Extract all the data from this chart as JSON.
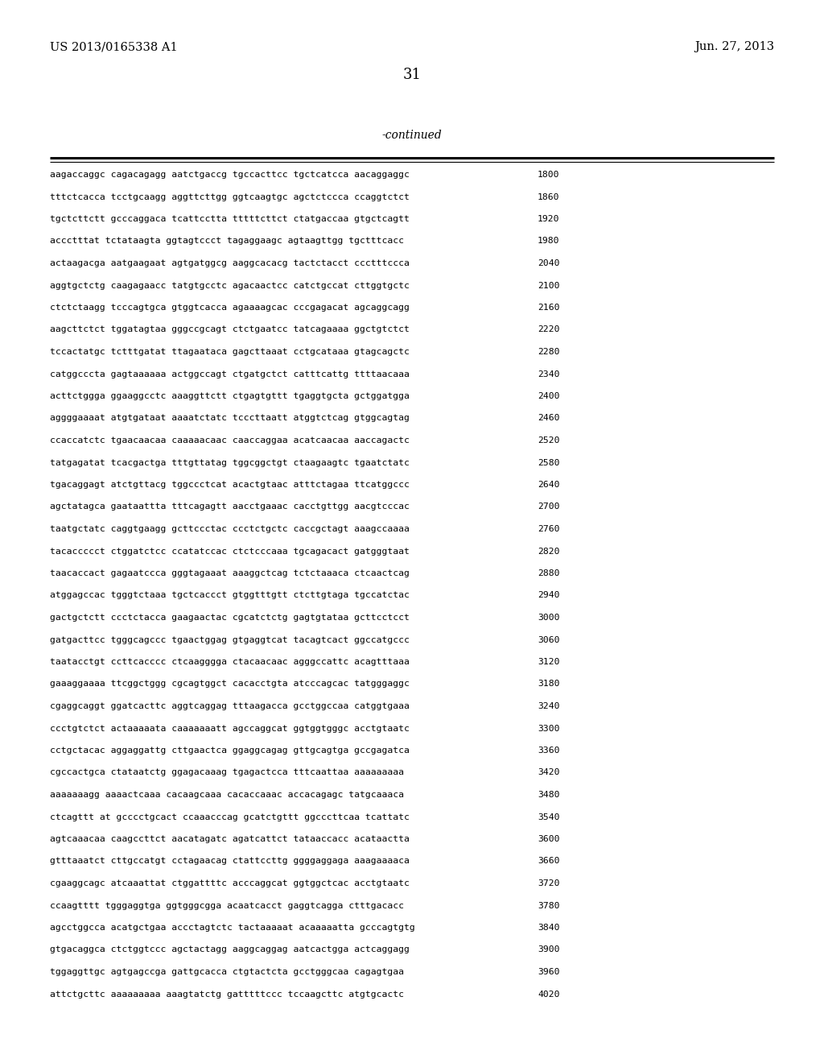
{
  "background_color": "#ffffff",
  "header_left": "US 2013/0165338 A1",
  "header_right": "Jun. 27, 2013",
  "page_number": "31",
  "continued_label": "-continued",
  "sequence_lines": [
    {
      "seq": "aagaccaggc cagacagagg aatctgaccg tgccacttcc tgctcatcca aacaggaggc",
      "num": "1800"
    },
    {
      "seq": "tttctcacca tcctgcaagg aggttcttgg ggtcaagtgc agctctccca ccaggtctct",
      "num": "1860"
    },
    {
      "seq": "tgctcttctt gcccaggaca tcattcctta tttttcttct ctatgaccaa gtgctcagtt",
      "num": "1920"
    },
    {
      "seq": "accctttat tctataagta ggtagtccct tagaggaagc agtaagttgg tgctttcacc",
      "num": "1980"
    },
    {
      "seq": "actaagacga aatgaagaat agtgatggcg aaggcacacg tactctacct ccctttccca",
      "num": "2040"
    },
    {
      "seq": "aggtgctctg caagagaacc tatgtgcctc agacaactcc catctgccat cttggtgctc",
      "num": "2100"
    },
    {
      "seq": "ctctctaagg tcccagtgca gtggtcacca agaaaagcac cccgagacat agcaggcagg",
      "num": "2160"
    },
    {
      "seq": "aagcttctct tggatagtaa gggccgcagt ctctgaatcc tatcagaaaa ggctgtctct",
      "num": "2220"
    },
    {
      "seq": "tccactatgc tctttgatat ttagaataca gagcttaaat cctgcataaa gtagcagctc",
      "num": "2280"
    },
    {
      "seq": "catggcccta gagtaaaaaa actggccagt ctgatgctct catttcattg ttttaacaaa",
      "num": "2340"
    },
    {
      "seq": "acttctggga ggaaggcctc aaaggttctt ctgagtgttt tgaggtgcta gctggatgga",
      "num": "2400"
    },
    {
      "seq": "aggggaaaat atgtgataat aaaatctatc tcccttaatt atggtctcag gtggcagtag",
      "num": "2460"
    },
    {
      "seq": "ccaccatctc tgaacaacaa caaaaacaac caaccaggaa acatcaacaa aaccagactc",
      "num": "2520"
    },
    {
      "seq": "tatgagatat tcacgactga tttgttatag tggcggctgt ctaagaagtc tgaatctatc",
      "num": "2580"
    },
    {
      "seq": "tgacaggagt atctgttacg tggccctcat acactgtaac atttctagaa ttcatggccc",
      "num": "2640"
    },
    {
      "seq": "agctatagca gaataattta tttcagagtt aacctgaaac cacctgttgg aacgtcccac",
      "num": "2700"
    },
    {
      "seq": "taatgctatc caggtgaagg gcttccctac ccctctgctc caccgctagt aaagccaaaa",
      "num": "2760"
    },
    {
      "seq": "tacaccccct ctggatctcc ccatatccac ctctcccaaa tgcagacact gatgggtaat",
      "num": "2820"
    },
    {
      "seq": "taacaccact gagaatccca gggtagaaat aaaggctcag tctctaaaca ctcaactcag",
      "num": "2880"
    },
    {
      "seq": "atggagccac tgggtctaaa tgctcaccct gtggtttgtt ctcttgtaga tgccatctac",
      "num": "2940"
    },
    {
      "seq": "gactgctctt ccctctacca gaagaactac cgcatctctg gagtgtataa gcttcctcct",
      "num": "3000"
    },
    {
      "seq": "gatgacttcc tgggcagccc tgaactggag gtgaggtcat tacagtcact ggccatgccc",
      "num": "3060"
    },
    {
      "seq": "taatacctgt ccttcacccc ctcaagggga ctacaacaac agggccattc acagtttaaa",
      "num": "3120"
    },
    {
      "seq": "gaaaggaaaa ttcggctggg cgcagtggct cacacctgta atcccagcac tatgggaggc",
      "num": "3180"
    },
    {
      "seq": "cgaggcaggt ggatcacttc aggtcaggag tttaagacca gcctggccaa catggtgaaa",
      "num": "3240"
    },
    {
      "seq": "ccctgtctct actaaaaata caaaaaaatt agccaggcat ggtggtgggc acctgtaatc",
      "num": "3300"
    },
    {
      "seq": "cctgctacac aggaggattg cttgaactca ggaggcagag gttgcagtga gccgagatca",
      "num": "3360"
    },
    {
      "seq": "cgccactgca ctataatctg ggagacaaag tgagactcca tttcaattaa aaaaaaaaa",
      "num": "3420"
    },
    {
      "seq": "aaaaaaagg aaaactcaaa cacaagcaaa cacaccaaac accacagagc tatgcaaaca",
      "num": "3480"
    },
    {
      "seq": "ctcagttt at gcccctgcact ccaaacccag gcatctgttt ggcccttcaa tcattatc",
      "num": "3540"
    },
    {
      "seq": "agtcaaacaa caagccttct aacatagatc agatcattct tataaccacc acataactta",
      "num": "3600"
    },
    {
      "seq": "gtttaaatct cttgccatgt cctagaacag ctattccttg ggggaggaga aaagaaaaca",
      "num": "3660"
    },
    {
      "seq": "cgaaggcagc atcaaattat ctggattttc acccaggcat ggtggctcac acctgtaatc",
      "num": "3720"
    },
    {
      "seq": "ccaagtttt tgggaggtga ggtgggcgga acaatcacct gaggtcagga ctttgacacc",
      "num": "3780"
    },
    {
      "seq": "agcctggcca acatgctgaa accctagtctc tactaaaaat acaaaaatta gcccagtgtg",
      "num": "3840"
    },
    {
      "seq": "gtgacaggca ctctggtccc agctactagg aaggcaggag aatcactgga actcaggagg",
      "num": "3900"
    },
    {
      "seq": "tggaggttgc agtgagccga gattgcacca ctgtactcta gcctgggcaa cagagtgaa",
      "num": "3960"
    },
    {
      "seq": "attctgcttc aaaaaaaaa aaagtatctg gatttttccc tccaagcttc atgtgcactc",
      "num": "4020"
    }
  ]
}
